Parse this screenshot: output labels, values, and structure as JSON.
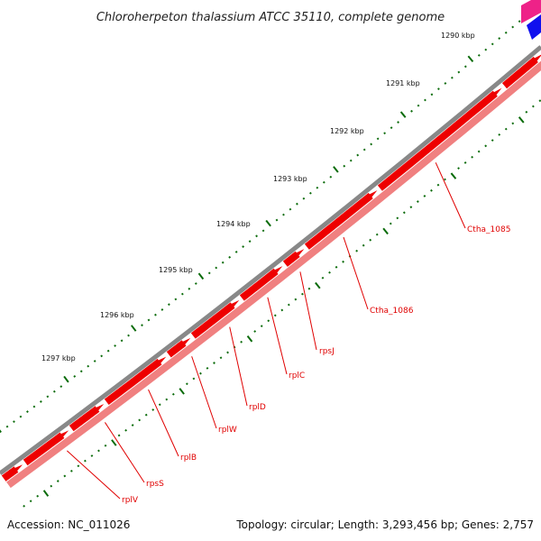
{
  "title": "Chloroherpeton thalassium ATCC 35110, complete genome",
  "footer": {
    "accession": "Accession: NC_011026",
    "summary": "Topology: circular; Length: 3,293,456 bp; Genes: 2,757"
  },
  "ruler": {
    "major_ticks": [
      {
        "label": "1290 kbp",
        "kbp": 1290
      },
      {
        "label": "1291 kbp",
        "kbp": 1291
      },
      {
        "label": "1292 kbp",
        "kbp": 1292
      },
      {
        "label": "1293 kbp",
        "kbp": 1293
      },
      {
        "label": "1294 kbp",
        "kbp": 1294
      },
      {
        "label": "1295 kbp",
        "kbp": 1295
      },
      {
        "label": "1296 kbp",
        "kbp": 1296
      },
      {
        "label": "1297 kbp",
        "kbp": 1297
      }
    ]
  },
  "genes": [
    {
      "label": "Ctha_1085"
    },
    {
      "label": "Ctha_1086"
    },
    {
      "label": "rpsJ"
    },
    {
      "label": "rplC"
    },
    {
      "label": "rplD"
    },
    {
      "label": "rplW"
    },
    {
      "label": "rplB"
    },
    {
      "label": "rpsS"
    },
    {
      "label": "rplV"
    }
  ],
  "colors": {
    "backbone": "#888888",
    "cds_forward": "#ee0000",
    "cds_shadow": "#f08080",
    "label": "#e00000",
    "tick": "#0a6b0a"
  }
}
